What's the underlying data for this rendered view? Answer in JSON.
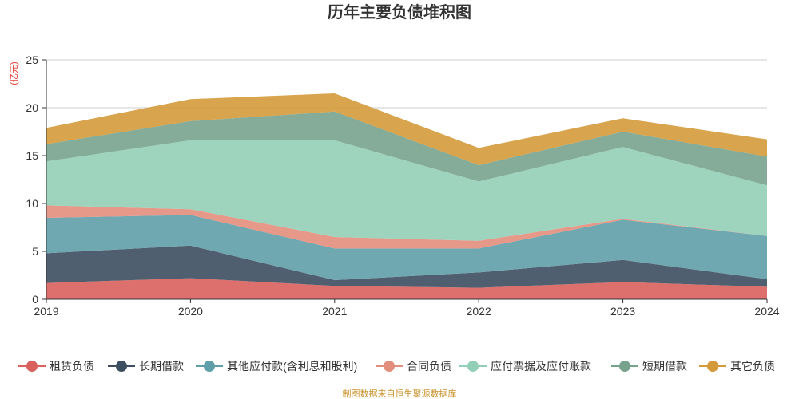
{
  "chart_data": {
    "type": "area",
    "stacked": true,
    "title": "历年主要负债堆积图",
    "unit_label": "(亿元)",
    "x": [
      "2019",
      "2020",
      "2021",
      "2022",
      "2023",
      "2024"
    ],
    "yticks": [
      "0",
      "5",
      "10",
      "15",
      "20",
      "25"
    ],
    "ylim": [
      0,
      25
    ],
    "grid": true,
    "legend_position": "bottom",
    "source": "制图数据来自恒生聚源数据库",
    "series": [
      {
        "name": "租赁负债",
        "color": "#d9605d",
        "values": [
          1.7,
          2.2,
          1.4,
          1.2,
          1.8,
          1.3
        ]
      },
      {
        "name": "长期借款",
        "color": "#3d4e60",
        "values": [
          3.1,
          3.4,
          0.6,
          1.6,
          2.3,
          0.8
        ]
      },
      {
        "name": "其他应付款(含利息和股利)",
        "color": "#5f9fa9",
        "values": [
          3.7,
          3.2,
          3.3,
          2.5,
          4.2,
          4.5
        ]
      },
      {
        "name": "合同负债",
        "color": "#e38d7c",
        "values": [
          1.3,
          0.6,
          1.2,
          0.8,
          0.1,
          0.0
        ]
      },
      {
        "name": "应付票据及应付账款",
        "color": "#93cfb6",
        "values": [
          4.6,
          7.2,
          10.1,
          6.2,
          7.5,
          5.3
        ]
      },
      {
        "name": "短期借款",
        "color": "#77a38d",
        "values": [
          1.8,
          2.0,
          3.0,
          1.7,
          1.6,
          3.0
        ]
      },
      {
        "name": "其它负债",
        "color": "#d49a3a",
        "values": [
          1.7,
          2.3,
          1.9,
          1.8,
          1.4,
          1.8
        ]
      }
    ]
  }
}
